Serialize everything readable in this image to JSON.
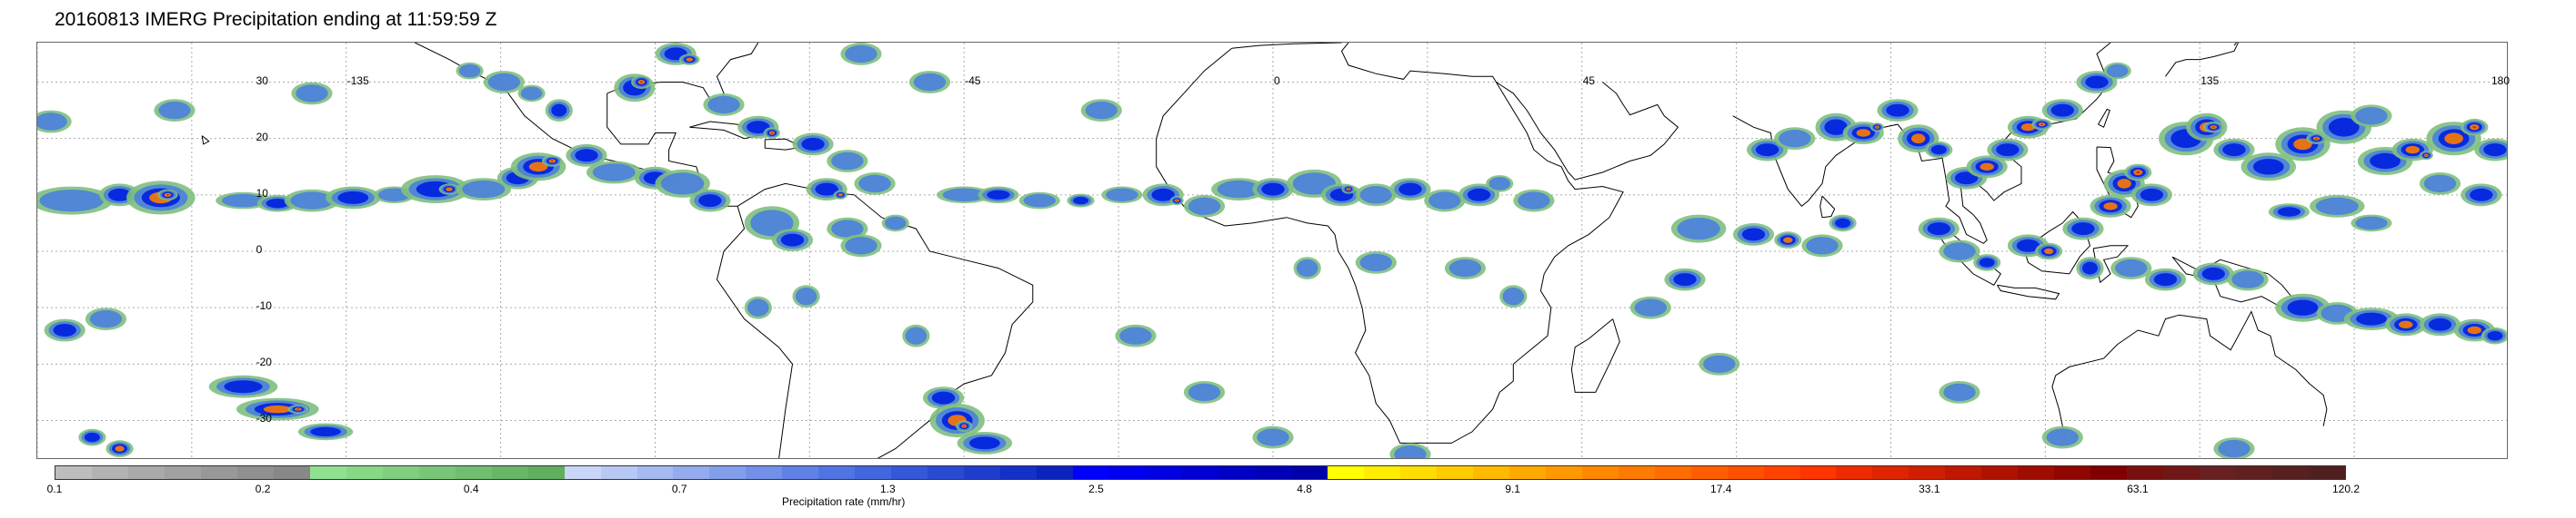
{
  "title": "20160813 IMERG Precipitation ending at 11:59:59 Z",
  "map": {
    "lon_labels": [
      "-135",
      "-45",
      "0",
      "45",
      "135",
      "180"
    ],
    "lat_labels": [
      "30",
      "20",
      "10",
      "0",
      "-10",
      "-20",
      "-30"
    ],
    "lon_positions": [
      -135,
      -45,
      0,
      45,
      135,
      180
    ],
    "lat_positions": [
      30,
      20,
      10,
      0,
      -10,
      -20,
      -30
    ],
    "lon_range": [
      -180,
      180
    ],
    "lat_range": [
      -37,
      37
    ]
  },
  "colorbar": {
    "label": "Precipitation rate (mm/hr)",
    "tick_labels": [
      "0.1",
      "0.2",
      "0.4",
      "0.7",
      "1.3",
      "2.5",
      "4.8",
      "9.1",
      "17.4",
      "33.1",
      "63.1",
      "120.2"
    ],
    "colors": [
      "#bdbdbd",
      "#b3b3b3",
      "#aaaaaa",
      "#a1a1a1",
      "#989898",
      "#909090",
      "#888888",
      "#8fe08f",
      "#86d886",
      "#7fcf7f",
      "#78c778",
      "#70bf70",
      "#68b668",
      "#60ae60",
      "#c9d6f7",
      "#b7c8f4",
      "#a6baf1",
      "#94acee",
      "#839eeb",
      "#7290e8",
      "#6182e5",
      "#5074e2",
      "#4266dd",
      "#3558d8",
      "#2a4ad2",
      "#1f3dcc",
      "#1530c6",
      "#0b24c0",
      "#0000ff",
      "#0000f0",
      "#0000e2",
      "#0000d4",
      "#0000c6",
      "#0000b8",
      "#0000aa",
      "#ffff00",
      "#ffee00",
      "#ffdd00",
      "#ffcc00",
      "#ffbb00",
      "#ffaa00",
      "#ff9900",
      "#ff8800",
      "#ff7a00",
      "#ff6c00",
      "#ff5e00",
      "#ff5000",
      "#ff4200",
      "#ff3400",
      "#f02a00",
      "#e02400",
      "#d01e00",
      "#c01800",
      "#b01200",
      "#a00c00",
      "#900600",
      "#800000",
      "#781010",
      "#701818",
      "#682020",
      "#602020",
      "#582020",
      "#502020"
    ]
  },
  "palette": {
    "rain_light": "#7fbf7f",
    "rain_mid": "#4a7fdc",
    "rain_heavy": "#0020e0",
    "rain_intense": "#ff7a00",
    "rain_extreme": "#d02000",
    "gridline": "#aaaaaa",
    "coastline": "#000000"
  }
}
